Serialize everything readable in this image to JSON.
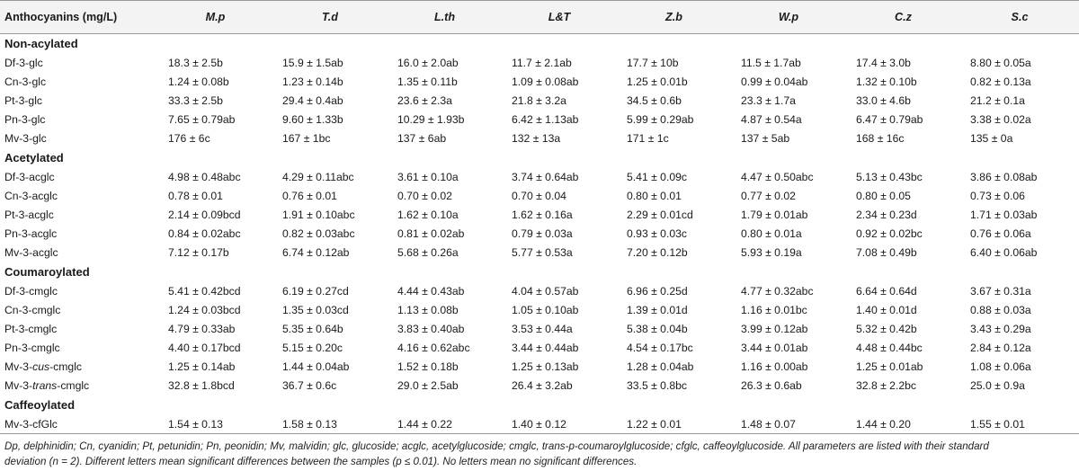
{
  "table": {
    "header_label": "Anthocyanins (mg/L)",
    "samples": [
      "M.p",
      "T.d",
      "L.th",
      "L&T",
      "Z.b",
      "W.p",
      "C.z",
      "S.c"
    ],
    "sections": [
      {
        "title": "Non-acylated",
        "rows": [
          {
            "name": [
              "Df-3-glc"
            ],
            "values": [
              "18.3 ± 2.5b",
              "15.9 ± 1.5ab",
              "16.0 ± 2.0ab",
              "11.7 ± 2.1ab",
              "17.7 ± 10b",
              "11.5 ± 1.7ab",
              "17.4 ± 3.0b",
              "8.80 ± 0.05a"
            ]
          },
          {
            "name": [
              "Cn-3-glc"
            ],
            "values": [
              "1.24 ± 0.08b",
              "1.23 ± 0.14b",
              "1.35 ± 0.11b",
              "1.09 ± 0.08ab",
              "1.25 ± 0.01b",
              "0.99 ± 0.04ab",
              "1.32 ± 0.10b",
              "0.82 ± 0.13a"
            ]
          },
          {
            "name": [
              "Pt-3-glc"
            ],
            "values": [
              "33.3 ± 2.5b",
              "29.4 ± 0.4ab",
              "23.6 ± 2.3a",
              "21.8 ± 3.2a",
              "34.5 ± 0.6b",
              "23.3 ± 1.7a",
              "33.0 ± 4.6b",
              "21.2 ± 0.1a"
            ]
          },
          {
            "name": [
              "Pn-3-glc"
            ],
            "values": [
              "7.65 ± 0.79ab",
              "9.60 ± 1.33b",
              "10.29 ± 1.93b",
              "6.42 ± 1.13ab",
              "5.99 ± 0.29ab",
              "4.87 ± 0.54a",
              "6.47 ± 0.79ab",
              "3.38 ± 0.02a"
            ]
          },
          {
            "name": [
              "Mv-3-glc"
            ],
            "values": [
              "176 ± 6c",
              "167 ± 1bc",
              "137 ± 6ab",
              "132 ± 13a",
              "171 ± 1c",
              "137 ± 5ab",
              "168 ± 16c",
              "135 ± 0a"
            ]
          }
        ]
      },
      {
        "title": "Acetylated",
        "rows": [
          {
            "name": [
              "Df-3-acglc"
            ],
            "values": [
              "4.98 ± 0.48abc",
              "4.29 ± 0.11abc",
              "3.61 ± 0.10a",
              "3.74 ± 0.64ab",
              "5.41 ± 0.09c",
              "4.47 ± 0.50abc",
              "5.13 ± 0.43bc",
              "3.86 ± 0.08ab"
            ]
          },
          {
            "name": [
              "Cn-3-acglc"
            ],
            "values": [
              "0.78 ± 0.01",
              "0.76 ± 0.01",
              "0.70 ± 0.02",
              "0.70 ± 0.04",
              "0.80 ± 0.01",
              "0.77 ± 0.02",
              "0.80 ± 0.05",
              "0.73 ± 0.06"
            ]
          },
          {
            "name": [
              "Pt-3-acglc"
            ],
            "values": [
              "2.14 ± 0.09bcd",
              "1.91 ± 0.10abc",
              "1.62 ± 0.10a",
              "1.62 ± 0.16a",
              "2.29 ± 0.01cd",
              "1.79 ± 0.01ab",
              "2.34 ± 0.23d",
              "1.71 ± 0.03ab"
            ]
          },
          {
            "name": [
              "Pn-3-acglc"
            ],
            "values": [
              "0.84 ± 0.02abc",
              "0.82 ± 0.03abc",
              "0.81 ± 0.02ab",
              "0.79 ± 0.03a",
              "0.93 ± 0.03c",
              "0.80 ± 0.01a",
              "0.92 ± 0.02bc",
              "0.76 ± 0.06a"
            ]
          },
          {
            "name": [
              "Mv-3-acglc"
            ],
            "values": [
              "7.12 ± 0.17b",
              "6.74 ± 0.12ab",
              "5.68 ± 0.26a",
              "5.77 ± 0.53a",
              "7.20 ± 0.12b",
              "5.93 ± 0.19a",
              "7.08 ± 0.49b",
              "6.40 ± 0.06ab"
            ]
          }
        ]
      },
      {
        "title": "Coumaroylated",
        "rows": [
          {
            "name": [
              "Df-3-cmglc"
            ],
            "values": [
              "5.41 ± 0.42bcd",
              "6.19 ± 0.27cd",
              "4.44 ± 0.43ab",
              "4.04 ± 0.57ab",
              "6.96 ± 0.25d",
              "4.77 ± 0.32abc",
              "6.64 ± 0.64d",
              "3.67 ± 0.31a"
            ]
          },
          {
            "name": [
              "Cn-3-cmglc"
            ],
            "values": [
              "1.24 ± 0.03bcd",
              "1.35 ± 0.03cd",
              "1.13 ± 0.08b",
              "1.05 ± 0.10ab",
              "1.39 ± 0.01d",
              "1.16 ± 0.01bc",
              "1.40 ± 0.01d",
              "0.88 ± 0.03a"
            ]
          },
          {
            "name": [
              "Pt-3-cmglc"
            ],
            "values": [
              "4.79 ± 0.33ab",
              "5.35 ± 0.64b",
              "3.83 ± 0.40ab",
              "3.53 ± 0.44a",
              "5.38 ± 0.04b",
              "3.99 ± 0.12ab",
              "5.32 ± 0.42b",
              "3.43 ± 0.29a"
            ]
          },
          {
            "name": [
              "Pn-3-cmglc"
            ],
            "values": [
              "4.40 ± 0.17bcd",
              "5.15 ± 0.20c",
              "4.16 ± 0.62abc",
              "3.44 ± 0.44ab",
              "4.54 ± 0.17bc",
              "3.44 ± 0.01ab",
              "4.48 ± 0.44bc",
              "2.84 ± 0.12a"
            ]
          },
          {
            "name": [
              "Mv-3-",
              "cus",
              "-cmglc"
            ],
            "values": [
              "1.25 ± 0.14ab",
              "1.44 ± 0.04ab",
              "1.52 ± 0.18b",
              "1.25 ± 0.13ab",
              "1.28 ± 0.04ab",
              "1.16 ± 0.00ab",
              "1.25 ± 0.01ab",
              "1.08 ± 0.06a"
            ]
          },
          {
            "name": [
              "Mv-3-",
              "trans",
              "-cmglc"
            ],
            "values": [
              "32.8 ± 1.8bcd",
              "36.7 ± 0.6c",
              "29.0 ± 2.5ab",
              "26.4 ± 3.2ab",
              "33.5 ± 0.8bc",
              "26.3 ± 0.6ab",
              "32.8 ± 2.2bc",
              "25.0 ± 0.9a"
            ]
          }
        ]
      },
      {
        "title": "Caffeoylated",
        "rows": [
          {
            "name": [
              "Mv-3-cfGlc"
            ],
            "values": [
              "1.54 ± 0.13",
              "1.58 ± 0.13",
              "1.44 ± 0.22",
              "1.40 ± 0.12",
              "1.22 ± 0.01",
              "1.48 ± 0.07",
              "1.44 ± 0.20",
              "1.55 ± 0.01"
            ]
          }
        ]
      }
    ]
  },
  "footnote": {
    "line1": "Dp, delphinidin; Cn, cyanidin; Pt, petunidin; Pn, peonidin; Mv, malvidin; glc, glucoside; acglc, acetylglucoside; cmglc, trans-p-coumaroylglucoside; cfglc, caffeoylglucoside. All parameters are listed with their standard",
    "line2": "deviation (n = 2). Different letters mean significant differences between the samples (p ≤ 0.01). No letters mean no significant differences."
  },
  "colors": {
    "header_background": "#f3f3f3",
    "rule": "#9a9a9a",
    "text": "#1a1a1a"
  }
}
